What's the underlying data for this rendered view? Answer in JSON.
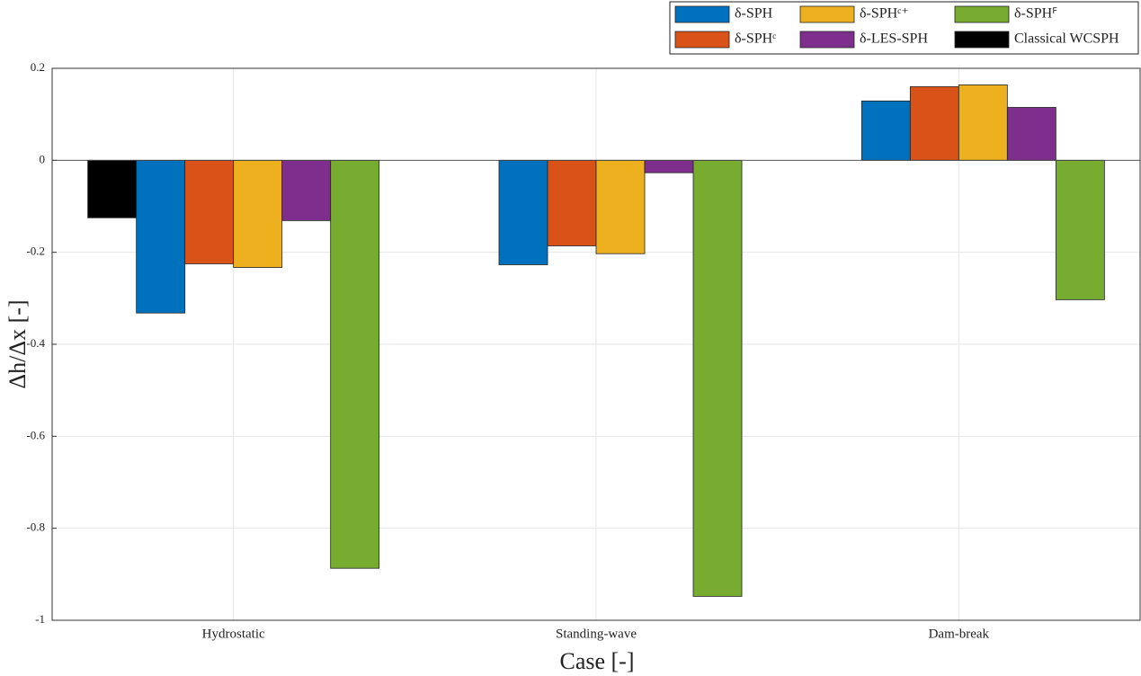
{
  "chart_data": {
    "type": "bar",
    "xlabel": "Case [-]",
    "ylabel": "Δh/Δx [-]",
    "categories": [
      "Hydrostatic",
      "Standing-wave",
      "Dam-break"
    ],
    "series": [
      {
        "name": "Classical WCSPH",
        "color": "#000000",
        "values": [
          -0.125,
          null,
          null
        ]
      },
      {
        "name": "δ-SPH",
        "color": "#0072bd",
        "values": [
          -0.332,
          -0.227,
          0.129
        ]
      },
      {
        "name": "δ-SPHᶜ",
        "color": "#d95319",
        "values": [
          -0.225,
          -0.186,
          0.16
        ]
      },
      {
        "name": "δ-SPHᶜ⁺",
        "color": "#edb120",
        "values": [
          -0.233,
          -0.203,
          0.164
        ]
      },
      {
        "name": "δ-LES-SPH",
        "color": "#7e2f8e",
        "values": [
          -0.131,
          -0.027,
          0.115
        ]
      },
      {
        "name": "δ-SPHꟳ",
        "color": "#77ac30",
        "values": [
          -0.887,
          -0.948,
          -0.303
        ]
      }
    ],
    "ylim": [
      -1,
      0.2
    ],
    "yticks": [
      -1,
      -0.8,
      -0.6,
      -0.4,
      -0.2,
      0,
      0.2
    ],
    "grid": true,
    "legend": "top-right"
  }
}
